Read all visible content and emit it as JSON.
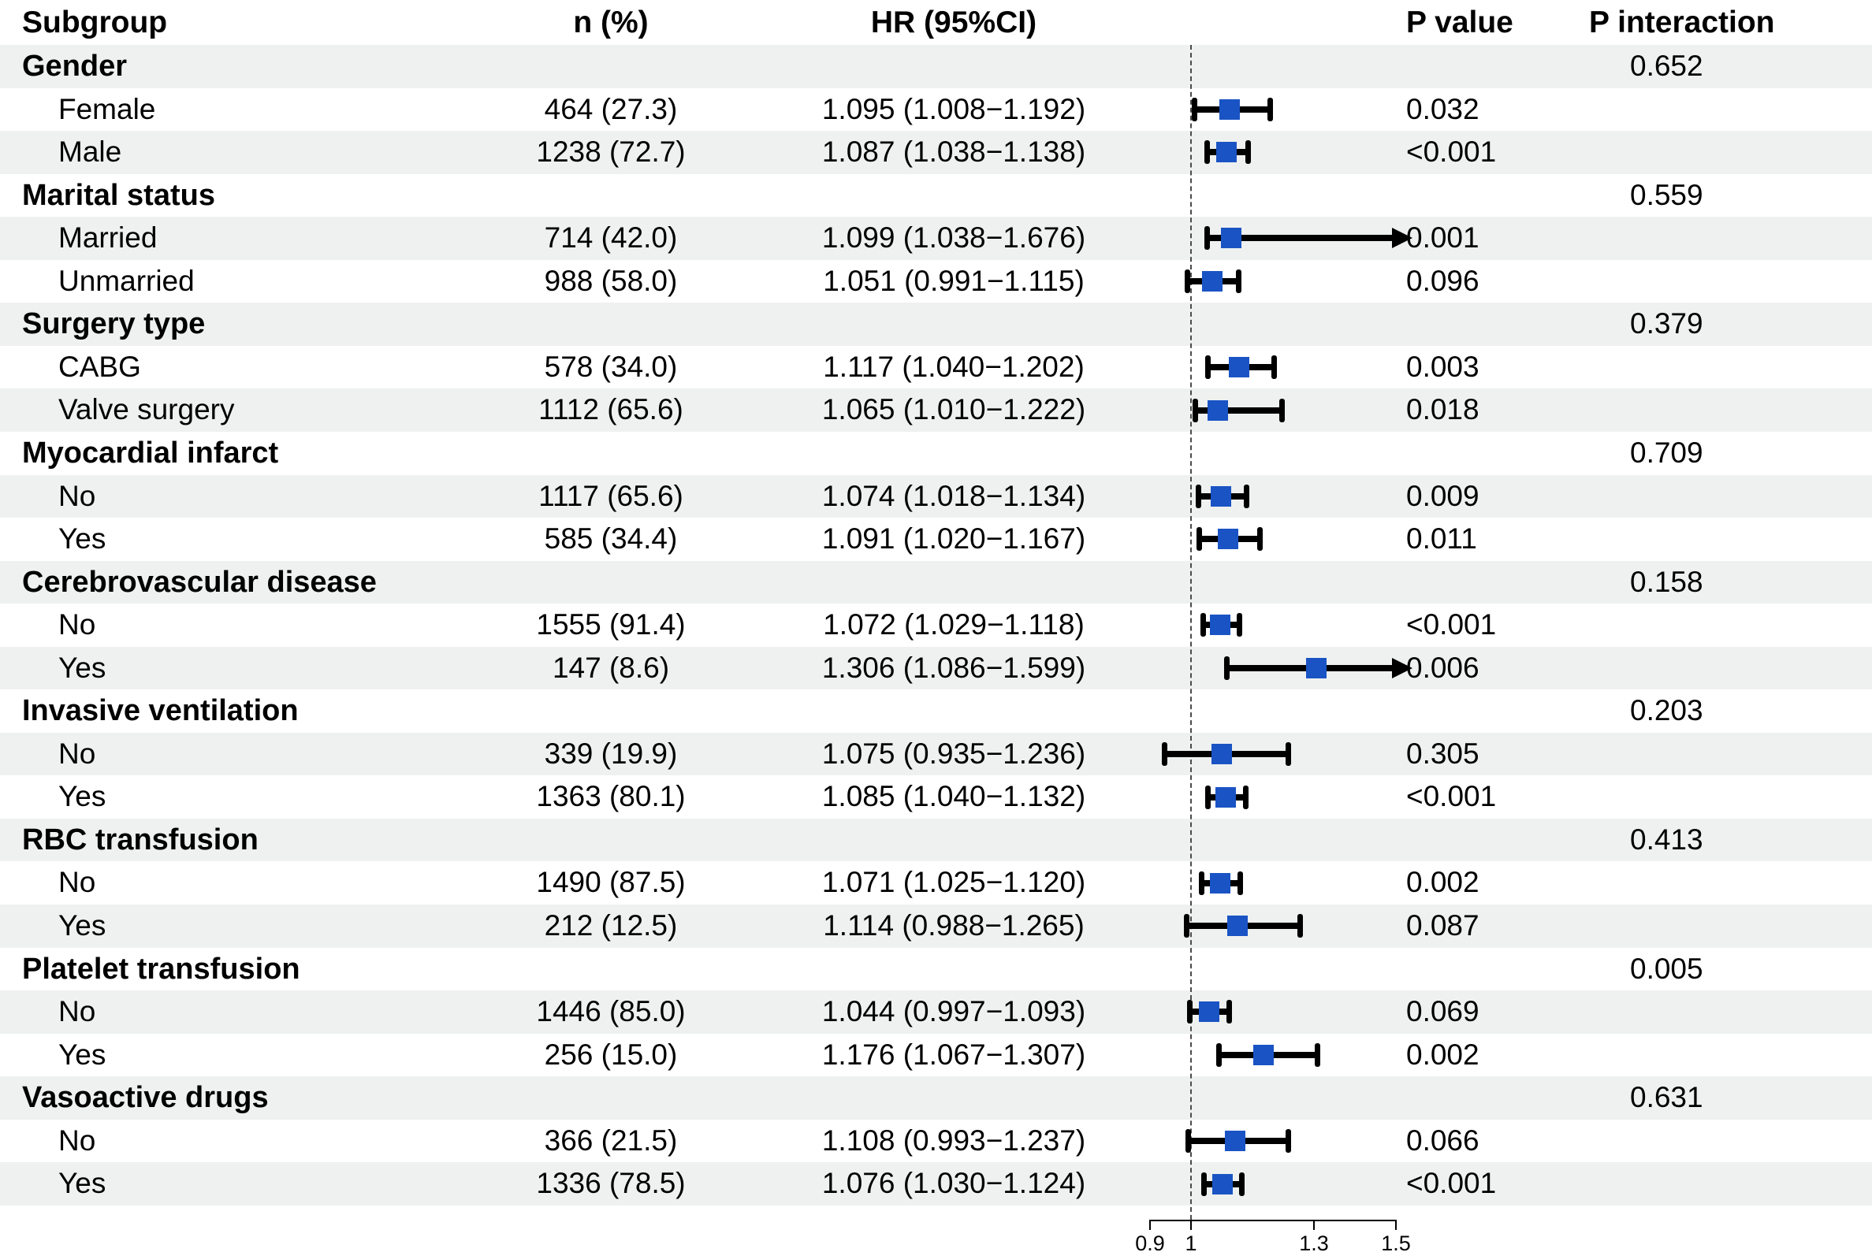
{
  "columns": {
    "subgroup": "Subgroup",
    "n": "n (%)",
    "hr": "HR (95%CI)",
    "p": "P value",
    "p_interaction": "P interaction"
  },
  "chart_data": {
    "type": "forest",
    "title": "Subgroup analysis forest plot",
    "xlabel": "HR (95%CI)",
    "axis": {
      "xlim": [
        0.9,
        1.5
      ],
      "ticks": [
        0.9,
        1,
        1.3,
        1.5
      ],
      "tick_labels": [
        "0.9",
        "1",
        "1.3",
        "1.5"
      ],
      "ref_line": 1,
      "grid": false
    },
    "marker_color": "#1a53c4",
    "ci_color": "#000000",
    "stripe_color": "#eef1f0",
    "groups": [
      {
        "name": "Gender",
        "p_interaction": "0.652",
        "rows": [
          {
            "label": "Female",
            "n": "464 (27.3)",
            "hr_text": "1.095 (1.008−1.192)",
            "hr": 1.095,
            "lo": 1.008,
            "hi": 1.192,
            "p": "0.032"
          },
          {
            "label": "Male",
            "n": "1238 (72.7)",
            "hr_text": "1.087 (1.038−1.138)",
            "hr": 1.087,
            "lo": 1.038,
            "hi": 1.138,
            "p": "<0.001"
          }
        ]
      },
      {
        "name": "Marital status",
        "p_interaction": "0.559",
        "rows": [
          {
            "label": "Married",
            "n": "714 (42.0)",
            "hr_text": "1.099 (1.038−1.676)",
            "hr": 1.099,
            "lo": 1.038,
            "hi": 1.676,
            "p": "0.001"
          },
          {
            "label": "Unmarried",
            "n": "988 (58.0)",
            "hr_text": "1.051 (0.991−1.115)",
            "hr": 1.051,
            "lo": 0.991,
            "hi": 1.115,
            "p": "0.096"
          }
        ]
      },
      {
        "name": "Surgery type",
        "p_interaction": "0.379",
        "rows": [
          {
            "label": "CABG",
            "n": "578 (34.0)",
            "hr_text": "1.117 (1.040−1.202)",
            "hr": 1.117,
            "lo": 1.04,
            "hi": 1.202,
            "p": "0.003"
          },
          {
            "label": "Valve surgery",
            "n": "1112 (65.6)",
            "hr_text": "1.065 (1.010−1.222)",
            "hr": 1.065,
            "lo": 1.01,
            "hi": 1.222,
            "p": "0.018"
          }
        ]
      },
      {
        "name": "Myocardial infarct",
        "p_interaction": "0.709",
        "rows": [
          {
            "label": "No",
            "n": "1117 (65.6)",
            "hr_text": "1.074 (1.018−1.134)",
            "hr": 1.074,
            "lo": 1.018,
            "hi": 1.134,
            "p": "0.009"
          },
          {
            "label": "Yes",
            "n": "585 (34.4)",
            "hr_text": "1.091 (1.020−1.167)",
            "hr": 1.091,
            "lo": 1.02,
            "hi": 1.167,
            "p": "0.011"
          }
        ]
      },
      {
        "name": "Cerebrovascular disease",
        "p_interaction": "0.158",
        "rows": [
          {
            "label": "No",
            "n": "1555 (91.4)",
            "hr_text": "1.072 (1.029−1.118)",
            "hr": 1.072,
            "lo": 1.029,
            "hi": 1.118,
            "p": "<0.001"
          },
          {
            "label": "Yes",
            "n": "147 (8.6)",
            "hr_text": "1.306 (1.086−1.599)",
            "hr": 1.306,
            "lo": 1.086,
            "hi": 1.599,
            "p": "0.006"
          }
        ]
      },
      {
        "name": "Invasive ventilation",
        "p_interaction": "0.203",
        "rows": [
          {
            "label": "No",
            "n": "339 (19.9)",
            "hr_text": "1.075 (0.935−1.236)",
            "hr": 1.075,
            "lo": 0.935,
            "hi": 1.236,
            "p": "0.305"
          },
          {
            "label": "Yes",
            "n": "1363 (80.1)",
            "hr_text": "1.085 (1.040−1.132)",
            "hr": 1.085,
            "lo": 1.04,
            "hi": 1.132,
            "p": "<0.001"
          }
        ]
      },
      {
        "name": "RBC transfusion",
        "p_interaction": "0.413",
        "rows": [
          {
            "label": "No",
            "n": "1490 (87.5)",
            "hr_text": "1.071 (1.025−1.120)",
            "hr": 1.071,
            "lo": 1.025,
            "hi": 1.12,
            "p": "0.002"
          },
          {
            "label": "Yes",
            "n": "212 (12.5)",
            "hr_text": "1.114 (0.988−1.265)",
            "hr": 1.114,
            "lo": 0.988,
            "hi": 1.265,
            "p": "0.087"
          }
        ]
      },
      {
        "name": "Platelet transfusion",
        "p_interaction": "0.005",
        "rows": [
          {
            "label": "No",
            "n": "1446 (85.0)",
            "hr_text": "1.044 (0.997−1.093)",
            "hr": 1.044,
            "lo": 0.997,
            "hi": 1.093,
            "p": "0.069"
          },
          {
            "label": "Yes",
            "n": "256 (15.0)",
            "hr_text": "1.176 (1.067−1.307)",
            "hr": 1.176,
            "lo": 1.067,
            "hi": 1.307,
            "p": "0.002"
          }
        ]
      },
      {
        "name": "Vasoactive drugs",
        "p_interaction": "0.631",
        "rows": [
          {
            "label": "No",
            "n": "366 (21.5)",
            "hr_text": "1.108 (0.993−1.237)",
            "hr": 1.108,
            "lo": 0.993,
            "hi": 1.237,
            "p": "0.066"
          },
          {
            "label": "Yes",
            "n": "1336 (78.5)",
            "hr_text": "1.076 (1.030−1.124)",
            "hr": 1.076,
            "lo": 1.03,
            "hi": 1.124,
            "p": "<0.001"
          }
        ]
      }
    ]
  }
}
